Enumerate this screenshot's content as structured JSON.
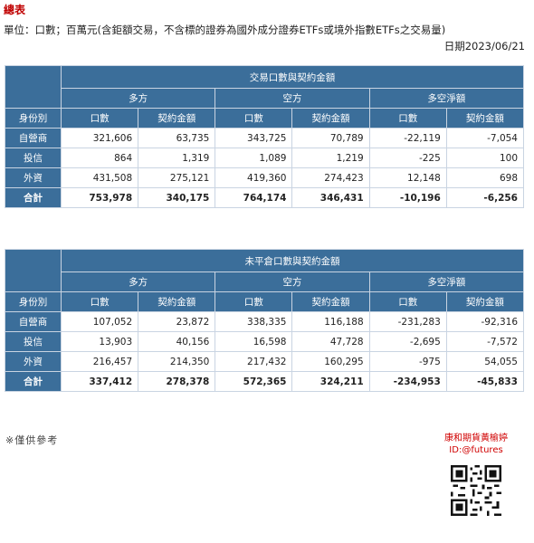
{
  "header": {
    "title": "總表",
    "unit_note": "單位：口數；百萬元(含鉅額交易，不含標的證券為國外成分證券ETFs或境外指數ETFs之交易量)",
    "date": "日期2023/06/21"
  },
  "table1": {
    "title": "交易口數與契約金額",
    "groups": [
      "多方",
      "空方",
      "多空淨額"
    ],
    "row_header": "身份別",
    "sub_headers": [
      "口數",
      "契約金額",
      "口數",
      "契約金額",
      "口數",
      "契約金額"
    ],
    "rows": [
      {
        "label": "自營商",
        "cells": [
          "321,606",
          "63,735",
          "343,725",
          "70,789",
          "-22,119",
          "-7,054"
        ]
      },
      {
        "label": "投信",
        "cells": [
          "864",
          "1,319",
          "1,089",
          "1,219",
          "-225",
          "100"
        ]
      },
      {
        "label": "外資",
        "cells": [
          "431,508",
          "275,121",
          "419,360",
          "274,423",
          "12,148",
          "698"
        ]
      },
      {
        "label": "合計",
        "cells": [
          "753,978",
          "340,175",
          "764,174",
          "346,431",
          "-10,196",
          "-6,256"
        ]
      }
    ]
  },
  "table2": {
    "title": "未平倉口數與契約金額",
    "groups": [
      "多方",
      "空方",
      "多空淨額"
    ],
    "row_header": "身份別",
    "sub_headers": [
      "口數",
      "契約金額",
      "口數",
      "契約金額",
      "口數",
      "契約金額"
    ],
    "rows": [
      {
        "label": "自營商",
        "cells": [
          "107,052",
          "23,872",
          "338,335",
          "116,188",
          "-231,283",
          "-92,316"
        ]
      },
      {
        "label": "投信",
        "cells": [
          "13,903",
          "40,156",
          "16,598",
          "47,728",
          "-2,695",
          "-7,572"
        ]
      },
      {
        "label": "外資",
        "cells": [
          "216,457",
          "214,350",
          "217,432",
          "160,295",
          "-975",
          "54,055"
        ]
      },
      {
        "label": "合計",
        "cells": [
          "337,412",
          "278,378",
          "572,365",
          "324,211",
          "-234,953",
          "-45,833"
        ]
      }
    ]
  },
  "footer": {
    "note": "※僅供參考",
    "promo_name": "康和期貨黃榆婷",
    "promo_handle": "ID:@futures",
    "fine_print": "",
    "qr_icon": "qr-code-icon"
  },
  "colors": {
    "header_bg": "#3b6e9a",
    "title_red": "#c00000",
    "border": "#c9d4e2"
  }
}
